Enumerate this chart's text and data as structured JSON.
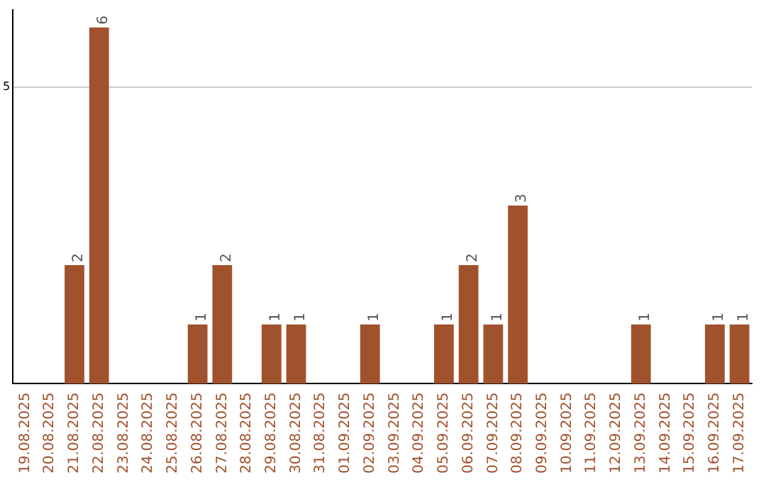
{
  "chart_data": {
    "type": "bar",
    "categories": [
      "19.08.2025",
      "20.08.2025",
      "21.08.2025",
      "22.08.2025",
      "23.08.2025",
      "24.08.2025",
      "25.08.2025",
      "26.08.2025",
      "27.08.2025",
      "28.08.2025",
      "29.08.2025",
      "30.08.2025",
      "31.08.2025",
      "01.09.2025",
      "02.09.2025",
      "03.09.2025",
      "04.09.2025",
      "05.09.2025",
      "06.09.2025",
      "07.09.2025",
      "08.09.2025",
      "09.09.2025",
      "10.09.2025",
      "11.09.2025",
      "12.09.2025",
      "13.09.2025",
      "14.09.2025",
      "15.09.2025",
      "16.09.2025",
      "17.09.2025"
    ],
    "values": [
      0,
      0,
      2,
      6,
      0,
      0,
      0,
      1,
      2,
      0,
      1,
      1,
      0,
      0,
      1,
      0,
      0,
      1,
      2,
      1,
      3,
      0,
      0,
      0,
      0,
      1,
      0,
      0,
      1,
      1
    ],
    "value_labels": [
      null,
      null,
      "2",
      "6",
      null,
      null,
      null,
      "1",
      "2",
      null,
      "1",
      "1",
      null,
      null,
      "1",
      null,
      null,
      "1",
      "2",
      "1",
      "3",
      null,
      null,
      null,
      null,
      "1",
      null,
      null,
      "1",
      "1"
    ],
    "color": "#a0522d",
    "ylim": [
      0,
      6.3
    ],
    "yticks": [
      5
    ],
    "grid": "y"
  }
}
